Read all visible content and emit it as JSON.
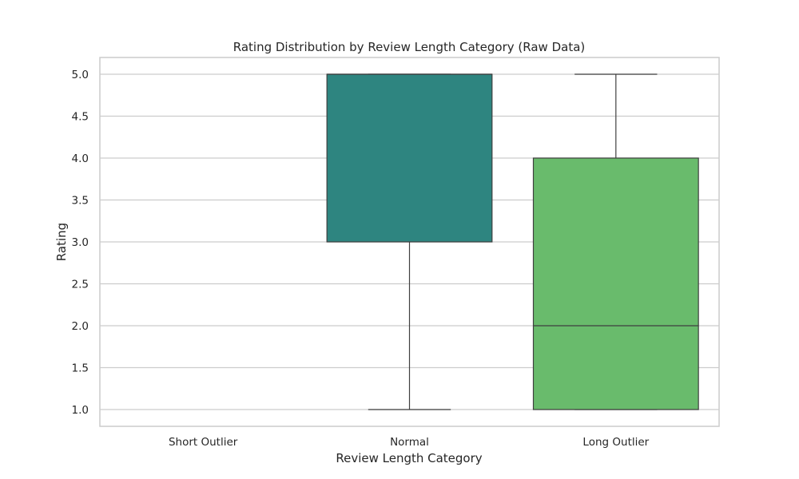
{
  "chart_data": {
    "type": "box",
    "title": "Rating Distribution by Review Length Category (Raw Data)",
    "xlabel": "Review Length Category",
    "ylabel": "Rating",
    "ylim": [
      0.8,
      5.2
    ],
    "yticks": [
      "1.0",
      "1.5",
      "2.0",
      "2.5",
      "3.0",
      "3.5",
      "4.0",
      "4.5",
      "5.0"
    ],
    "grid": true,
    "categories": [
      "Short Outlier",
      "Normal",
      "Long Outlier"
    ],
    "boxes": [
      {
        "category": "Short Outlier",
        "empty": true
      },
      {
        "category": "Normal",
        "whisker_low": 1.0,
        "q1": 3.0,
        "median": 5.0,
        "q3": 5.0,
        "whisker_high": 5.0,
        "color": "#2e8580"
      },
      {
        "category": "Long Outlier",
        "whisker_low": 1.0,
        "q1": 1.0,
        "median": 2.0,
        "q3": 4.0,
        "whisker_high": 5.0,
        "color": "#69bb6c"
      }
    ]
  }
}
